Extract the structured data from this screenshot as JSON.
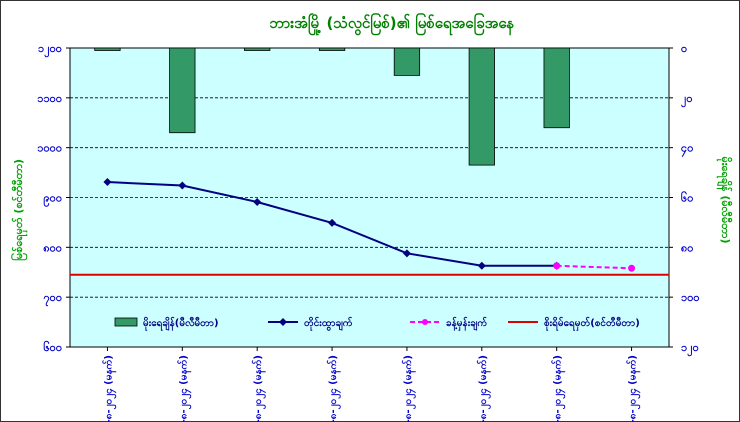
{
  "chart_data": {
    "type": "bar+line",
    "title": "ဘားအံမြို့ (သံလွင်မြစ်)၏ မြစ်ရေအခြေအနေ",
    "ylabel_left": "မြစ်ရေမှတ် (စင်တီမီတာ)",
    "ylabel_right": "မိုးရေချိန် (မီလီမီတာ)",
    "left_axis": {
      "min": 600,
      "max": 1200,
      "step": 100,
      "inverted": true,
      "tick_labels": [
        "၁၂၀၀",
        "၁၁၀၀",
        "၁၀၀၀",
        "၉၀၀",
        "၈၀၀",
        "၇၀၀",
        "၆၀၀"
      ]
    },
    "right_axis": {
      "min": 0,
      "max": 120,
      "step": 20,
      "inverted": true,
      "tick_labels": [
        "၀",
        "၂၀",
        "၄၀",
        "၆၀",
        "၈၀",
        "၁၀၀",
        "၁၂၀"
      ]
    },
    "categories": [
      "၁-၈-၂၀၂၄ (မနက်)",
      "၂-၈-၂၀၂၄ (မနက်)",
      "၃-၈-၂၀၂၄ (မနက်)",
      "၄-၈-၂၀၂၄ (မနက်)",
      "၅-၈-၂၀၂၄ (မနက်)",
      "၆-၈-၂၀၂၄ (မနက်)",
      "၇-၈-၂၀၂၄ (မနက်)",
      "၈-၈-၂၀၂၄ (မနက်)"
    ],
    "series": [
      {
        "name": "မိုးရေချိန်(မီလီမီတာ)",
        "type": "bar",
        "axis": "right",
        "color": "#339966",
        "values": [
          1,
          34,
          1,
          1,
          11,
          47,
          32,
          null
        ]
      },
      {
        "name": "တိုင်းထွာချက်",
        "type": "line",
        "axis": "left",
        "color": "#000080",
        "values": [
          931,
          924,
          891,
          849,
          788,
          763,
          763,
          null
        ]
      },
      {
        "name": "ခန့်မှန်းချက်",
        "type": "line-dashed",
        "axis": "left",
        "color": "#ff00ff",
        "values": [
          null,
          null,
          null,
          null,
          null,
          null,
          763,
          758
        ]
      },
      {
        "name": "စိုးရိမ်ရေမှတ်(စင်တီမီတာ)",
        "type": "hline",
        "axis": "left",
        "color": "#e00000",
        "value": 745
      }
    ]
  },
  "colors": {
    "plot_bg": "#ccffff",
    "title": "#008000",
    "axis_text": "#0000cc",
    "axis_title": "#00a000"
  }
}
